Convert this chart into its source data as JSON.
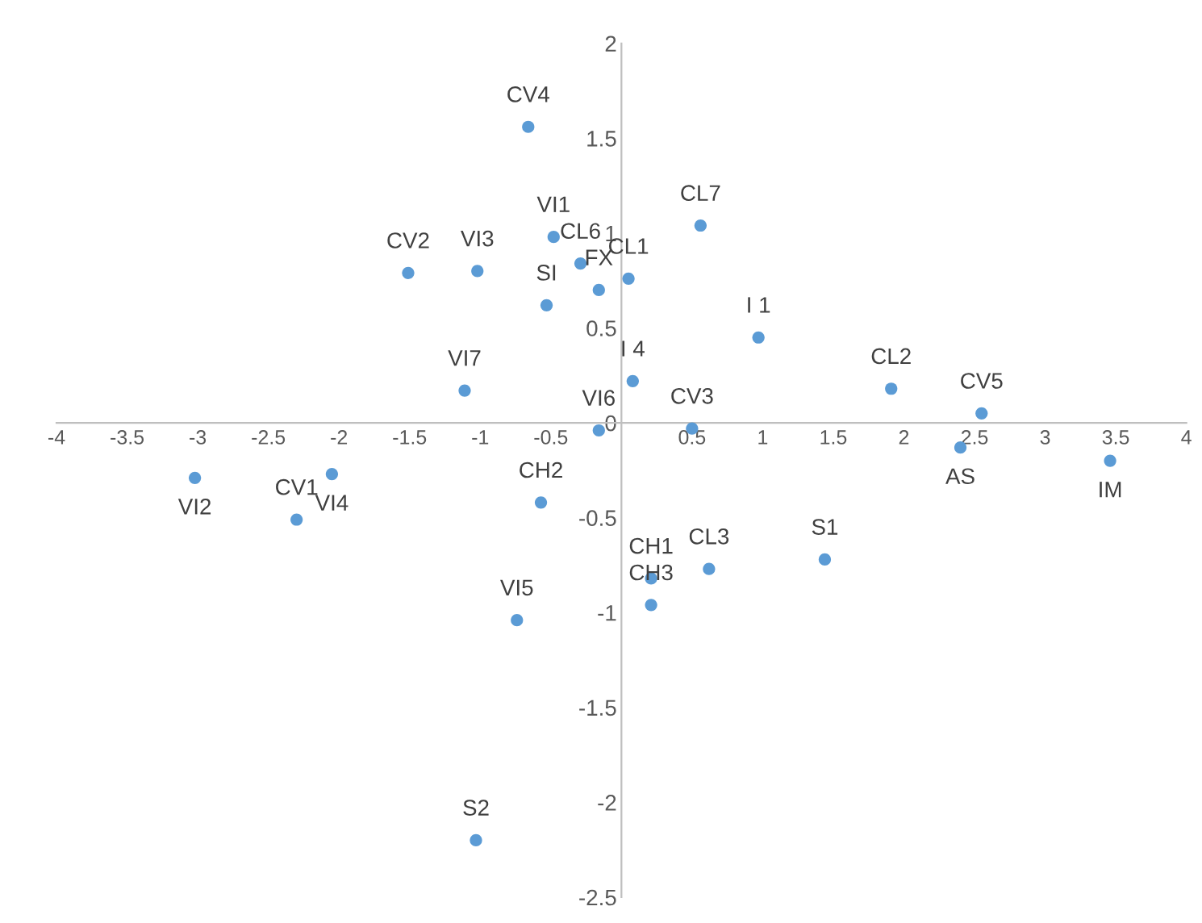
{
  "chart_data": {
    "type": "scatter",
    "color": "#5b9bd5",
    "marker": "circle",
    "grid": false,
    "legend": false,
    "x": [
      -0.66,
      -0.48,
      -0.29,
      -1.51,
      -1.02,
      -0.53,
      -0.16,
      0.05,
      0.56,
      0.97,
      0.08,
      -1.11,
      -0.16,
      0.5,
      1.91,
      2.55,
      2.4,
      3.46,
      -3.02,
      -2.05,
      -2.3,
      -0.57,
      0.21,
      0.21,
      0.62,
      1.44,
      -0.74,
      -1.03
    ],
    "values": [
      1.56,
      0.98,
      0.84,
      0.79,
      0.8,
      0.62,
      0.7,
      0.76,
      1.04,
      0.45,
      0.22,
      0.17,
      -0.04,
      -0.03,
      0.18,
      0.05,
      -0.13,
      -0.2,
      -0.29,
      -0.27,
      -0.51,
      -0.42,
      -0.82,
      -0.96,
      -0.77,
      -0.72,
      -1.04,
      -2.2
    ],
    "annotations": [
      {
        "text": "CV4",
        "x": -0.66,
        "y": 1.56
      },
      {
        "text": "VI1",
        "x": -0.48,
        "y": 0.98
      },
      {
        "text": "CL6",
        "x": -0.29,
        "y": 0.84
      },
      {
        "text": "CV2",
        "x": -1.51,
        "y": 0.79
      },
      {
        "text": "VI3",
        "x": -1.02,
        "y": 0.8
      },
      {
        "text": "SI",
        "x": -0.53,
        "y": 0.62
      },
      {
        "text": "FX",
        "x": -0.16,
        "y": 0.7
      },
      {
        "text": "CL1",
        "x": 0.05,
        "y": 0.76
      },
      {
        "text": "CL7",
        "x": 0.56,
        "y": 1.04
      },
      {
        "text": "I 1",
        "x": 0.97,
        "y": 0.45
      },
      {
        "text": "I 4",
        "x": 0.08,
        "y": 0.22
      },
      {
        "text": "VI7",
        "x": -1.11,
        "y": 0.17
      },
      {
        "text": "VI6",
        "x": -0.16,
        "y": -0.04
      },
      {
        "text": "CV3",
        "x": 0.5,
        "y": -0.03
      },
      {
        "text": "CL2",
        "x": 1.91,
        "y": 0.18
      },
      {
        "text": "CV5",
        "x": 2.55,
        "y": 0.05
      },
      {
        "text": "AS",
        "x": 2.4,
        "y": -0.13
      },
      {
        "text": "IM",
        "x": 3.46,
        "y": -0.2
      },
      {
        "text": "VI2",
        "x": -3.02,
        "y": -0.29
      },
      {
        "text": "VI4",
        "x": -2.05,
        "y": -0.27
      },
      {
        "text": "CV1",
        "x": -2.3,
        "y": -0.51
      },
      {
        "text": "CH2",
        "x": -0.57,
        "y": -0.42
      },
      {
        "text": "CH1",
        "x": 0.21,
        "y": -0.82
      },
      {
        "text": "CH3",
        "x": 0.21,
        "y": -0.96
      },
      {
        "text": "CL3",
        "x": 0.62,
        "y": -0.77
      },
      {
        "text": "S1",
        "x": 1.44,
        "y": -0.72
      },
      {
        "text": "VI5",
        "x": -0.74,
        "y": -1.04
      },
      {
        "text": "S2",
        "x": -1.03,
        "y": -2.2
      }
    ],
    "xlim": [
      -4,
      4
    ],
    "ylim": [
      -2.5,
      2
    ],
    "xticks": [
      -4,
      -3.5,
      -3,
      -2.5,
      -2,
      -1.5,
      -1,
      -0.5,
      0.5,
      1,
      1.5,
      2,
      2.5,
      3,
      3.5,
      4
    ],
    "yticks": [
      -2.5,
      -2,
      -1.5,
      -1,
      -0.5,
      0,
      0.5,
      1,
      1.5,
      2
    ]
  }
}
